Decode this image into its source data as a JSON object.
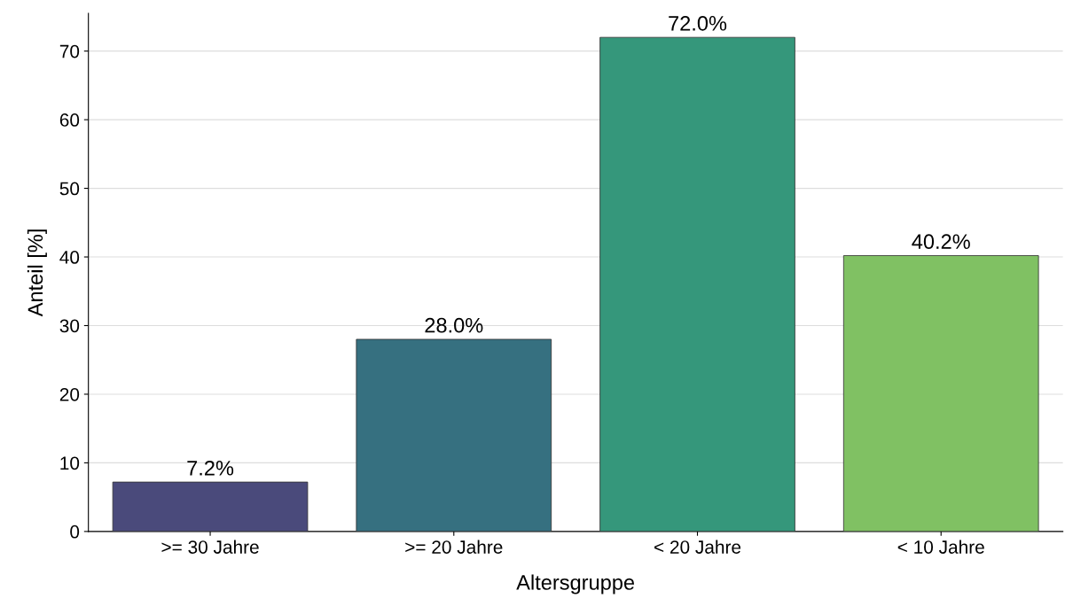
{
  "chart_data": {
    "type": "bar",
    "xlabel": "Altersgruppe",
    "ylabel": "Anteil [%]",
    "categories": [
      ">= 30 Jahre",
      ">= 20 Jahre",
      "< 20 Jahre",
      "< 10 Jahre"
    ],
    "values": [
      7.2,
      28.0,
      72.0,
      40.2
    ],
    "colors": [
      "#4a4a7b",
      "#367080",
      "#35977b",
      "#80c163"
    ],
    "value_labels": [
      "7.2%",
      "28.0%",
      "72.0%",
      "40.2%"
    ],
    "ylim": [
      0,
      75.5
    ],
    "yticks": [
      0,
      10,
      20,
      30,
      40,
      50,
      60,
      70
    ],
    "grid": "y",
    "legend": false
  }
}
